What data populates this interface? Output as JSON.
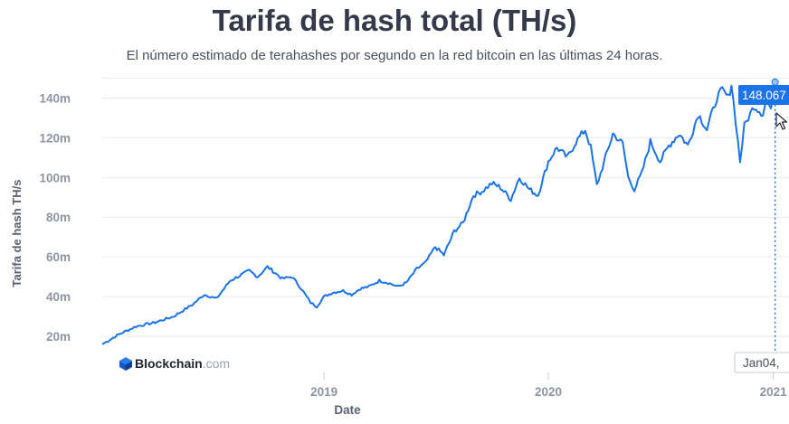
{
  "header": {
    "title": "Tarifa de hash total (TH/s)",
    "subtitle": "El número estimado de terahashes por segundo en la red bitcoin en las últimas 24 horas."
  },
  "branding": {
    "name": "Blockchain",
    "suffix": ".com",
    "logo_icon": "blockchain-cube-icon"
  },
  "tooltip": {
    "value": "148.067",
    "date": "Jan04,",
    "color": "#1a73e8"
  },
  "colors": {
    "line": "#1a73e8",
    "grid": "#e8eaee",
    "title": "#343a4a"
  },
  "chart_data": {
    "type": "line",
    "title": "Tarifa de hash total (TH/s)",
    "xlabel": "Date",
    "ylabel": "Tarifa de hash TH/s",
    "y_ticks": [
      "20m",
      "40m",
      "60m",
      "80m",
      "100m",
      "120m",
      "140m"
    ],
    "y_tick_values": [
      20,
      40,
      60,
      80,
      100,
      120,
      140
    ],
    "x_ticks": [
      "2019",
      "2020",
      "2021"
    ],
    "ylim": [
      10,
      152
    ],
    "xlim": [
      "2018-01-05",
      "2021-01-06"
    ],
    "grid": true,
    "series": [
      {
        "points": [
          [
            "2018-01-05",
            16
          ],
          [
            "2018-02-01",
            21
          ],
          [
            "2018-03-01",
            25
          ],
          [
            "2018-04-01",
            27
          ],
          [
            "2018-05-01",
            30
          ],
          [
            "2018-06-01",
            36
          ],
          [
            "2018-06-20",
            41
          ],
          [
            "2018-07-10",
            39
          ],
          [
            "2018-08-01",
            48
          ],
          [
            "2018-09-01",
            53
          ],
          [
            "2018-09-15",
            50
          ],
          [
            "2018-10-01",
            55
          ],
          [
            "2018-10-25",
            49
          ],
          [
            "2018-11-10",
            50
          ],
          [
            "2018-11-25",
            44
          ],
          [
            "2018-12-10",
            37
          ],
          [
            "2018-12-20",
            35
          ],
          [
            "2019-01-01",
            40
          ],
          [
            "2019-01-15",
            42
          ],
          [
            "2019-02-01",
            43
          ],
          [
            "2019-02-15",
            41
          ],
          [
            "2019-03-01",
            44
          ],
          [
            "2019-03-15",
            45
          ],
          [
            "2019-04-01",
            48
          ],
          [
            "2019-04-15",
            47
          ],
          [
            "2019-05-01",
            45
          ],
          [
            "2019-05-15",
            47
          ],
          [
            "2019-06-01",
            54
          ],
          [
            "2019-06-15",
            57
          ],
          [
            "2019-07-01",
            65
          ],
          [
            "2019-07-15",
            61
          ],
          [
            "2019-08-01",
            73
          ],
          [
            "2019-08-15",
            77
          ],
          [
            "2019-09-01",
            91
          ],
          [
            "2019-09-15",
            93
          ],
          [
            "2019-10-01",
            97
          ],
          [
            "2019-10-15",
            95
          ],
          [
            "2019-11-01",
            89
          ],
          [
            "2019-11-15",
            100
          ],
          [
            "2019-12-01",
            94
          ],
          [
            "2019-12-15",
            91
          ],
          [
            "2020-01-01",
            108
          ],
          [
            "2020-01-15",
            115
          ],
          [
            "2020-02-01",
            110
          ],
          [
            "2020-02-15",
            118
          ],
          [
            "2020-03-01",
            124
          ],
          [
            "2020-03-10",
            115
          ],
          [
            "2020-03-20",
            96
          ],
          [
            "2020-04-01",
            108
          ],
          [
            "2020-04-15",
            122
          ],
          [
            "2020-05-01",
            117
          ],
          [
            "2020-05-10",
            100
          ],
          [
            "2020-05-20",
            94
          ],
          [
            "2020-06-01",
            102
          ],
          [
            "2020-06-15",
            118
          ],
          [
            "2020-07-01",
            108
          ],
          [
            "2020-07-15",
            116
          ],
          [
            "2020-08-01",
            122
          ],
          [
            "2020-08-15",
            116
          ],
          [
            "2020-09-01",
            132
          ],
          [
            "2020-09-15",
            124
          ],
          [
            "2020-10-01",
            140
          ],
          [
            "2020-10-10",
            144
          ],
          [
            "2020-10-20",
            140
          ],
          [
            "2020-10-25",
            147
          ],
          [
            "2020-11-01",
            128
          ],
          [
            "2020-11-08",
            108
          ],
          [
            "2020-11-15",
            126
          ],
          [
            "2020-12-01",
            136
          ],
          [
            "2020-12-15",
            132
          ],
          [
            "2020-12-22",
            140
          ],
          [
            "2020-12-28",
            133
          ],
          [
            "2021-01-04",
            148
          ]
        ]
      }
    ]
  }
}
